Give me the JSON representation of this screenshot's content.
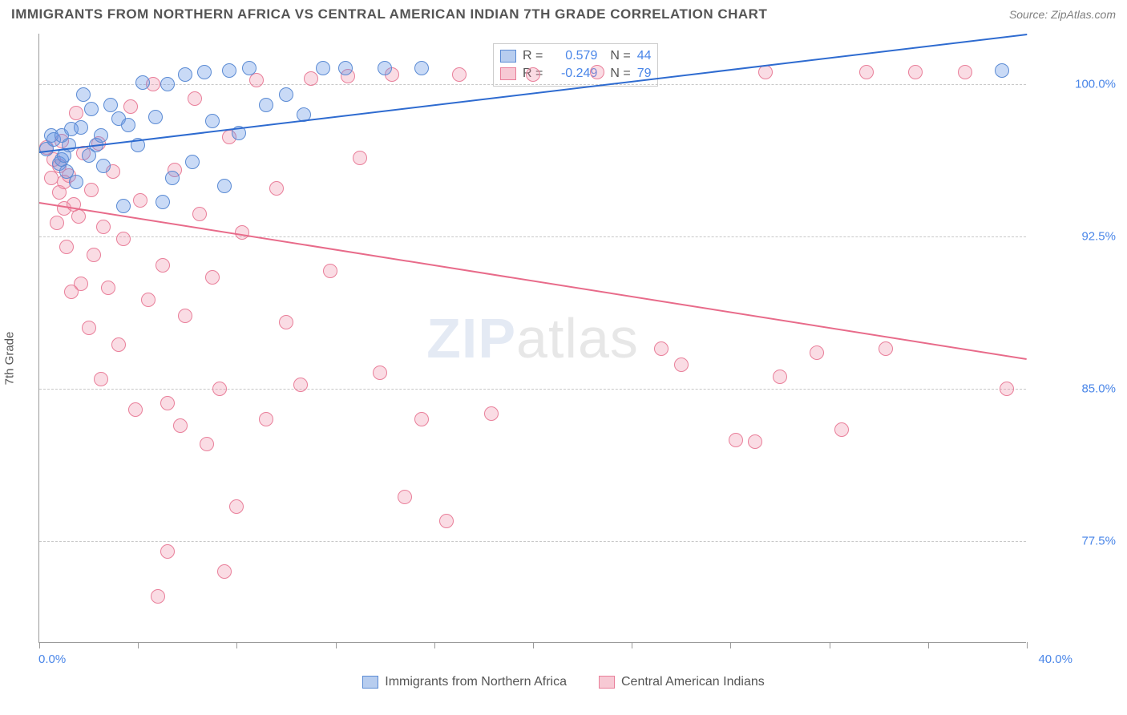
{
  "title": "IMMIGRANTS FROM NORTHERN AFRICA VS CENTRAL AMERICAN INDIAN 7TH GRADE CORRELATION CHART",
  "source": "Source: ZipAtlas.com",
  "ylabel": "7th Grade",
  "watermark_bold": "ZIP",
  "watermark_thin": "atlas",
  "chart": {
    "type": "scatter",
    "xlim": [
      0,
      40
    ],
    "ylim": [
      72.5,
      102.5
    ],
    "x_start_label": "0.0%",
    "x_end_label": "40.0%",
    "xtick_positions": [
      0,
      4,
      8,
      12,
      16,
      20,
      24,
      28,
      32,
      36,
      40
    ],
    "ytick_labels": [
      "100.0%",
      "92.5%",
      "85.0%",
      "77.5%"
    ],
    "ytick_values": [
      100.0,
      92.5,
      85.0,
      77.5
    ],
    "grid_color": "#c8c8c8",
    "axis_color": "#9a9a9a",
    "background_color": "#ffffff",
    "point_radius": 9,
    "point_opacity": 0.55,
    "line_width": 2
  },
  "series": [
    {
      "name": "Immigrants from Northern Africa",
      "color_fill": "rgba(100,150,230,0.35)",
      "color_stroke": "#5b8bd4",
      "swatch_fill": "#b7cdef",
      "swatch_border": "#5b8bd4",
      "trend_color": "#2e6bd0",
      "R": "0.579",
      "N": "44",
      "trend_line": {
        "x1": 0,
        "y1": 96.7,
        "x2": 40,
        "y2": 102.5
      },
      "points": [
        [
          0.3,
          96.8
        ],
        [
          0.5,
          97.5
        ],
        [
          0.6,
          97.3
        ],
        [
          0.8,
          96.1
        ],
        [
          0.9,
          96.3
        ],
        [
          0.9,
          97.5
        ],
        [
          1.0,
          96.5
        ],
        [
          1.1,
          95.7
        ],
        [
          1.2,
          97.0
        ],
        [
          1.3,
          97.8
        ],
        [
          1.5,
          95.2
        ],
        [
          1.7,
          97.9
        ],
        [
          1.8,
          99.5
        ],
        [
          2.0,
          96.5
        ],
        [
          2.1,
          98.8
        ],
        [
          2.3,
          97.0
        ],
        [
          2.5,
          97.5
        ],
        [
          2.6,
          96.0
        ],
        [
          2.9,
          99.0
        ],
        [
          3.2,
          98.3
        ],
        [
          3.4,
          94.0
        ],
        [
          3.6,
          98.0
        ],
        [
          4.0,
          97.0
        ],
        [
          4.2,
          100.1
        ],
        [
          4.7,
          98.4
        ],
        [
          5.0,
          94.2
        ],
        [
          5.2,
          100.0
        ],
        [
          5.4,
          95.4
        ],
        [
          5.9,
          100.5
        ],
        [
          6.2,
          96.2
        ],
        [
          6.7,
          100.6
        ],
        [
          7.0,
          98.2
        ],
        [
          7.5,
          95.0
        ],
        [
          7.7,
          100.7
        ],
        [
          8.1,
          97.6
        ],
        [
          8.5,
          100.8
        ],
        [
          9.2,
          99.0
        ],
        [
          10.0,
          99.5
        ],
        [
          10.7,
          98.5
        ],
        [
          11.5,
          100.8
        ],
        [
          12.4,
          100.8
        ],
        [
          14.0,
          100.8
        ],
        [
          15.5,
          100.8
        ],
        [
          39.0,
          100.7
        ]
      ]
    },
    {
      "name": "Central American Indians",
      "color_fill": "rgba(240,140,165,0.30)",
      "color_stroke": "#e97f9a",
      "swatch_fill": "#f7c9d4",
      "swatch_border": "#e97f9a",
      "trend_color": "#e86b8a",
      "R": "-0.249",
      "N": "79",
      "trend_line": {
        "x1": 0,
        "y1": 94.2,
        "x2": 40,
        "y2": 86.5
      },
      "points": [
        [
          0.3,
          96.9
        ],
        [
          0.5,
          95.4
        ],
        [
          0.6,
          96.3
        ],
        [
          0.7,
          93.2
        ],
        [
          0.8,
          96.0
        ],
        [
          0.8,
          94.7
        ],
        [
          0.9,
          97.2
        ],
        [
          1.0,
          93.9
        ],
        [
          1.0,
          95.2
        ],
        [
          1.1,
          92.0
        ],
        [
          1.2,
          95.5
        ],
        [
          1.3,
          89.8
        ],
        [
          1.4,
          94.1
        ],
        [
          1.5,
          98.6
        ],
        [
          1.6,
          93.5
        ],
        [
          1.7,
          90.2
        ],
        [
          1.8,
          96.6
        ],
        [
          2.0,
          88.0
        ],
        [
          2.1,
          94.8
        ],
        [
          2.2,
          91.6
        ],
        [
          2.4,
          97.1
        ],
        [
          2.5,
          85.5
        ],
        [
          2.6,
          93.0
        ],
        [
          2.8,
          90.0
        ],
        [
          3.0,
          95.7
        ],
        [
          3.2,
          87.2
        ],
        [
          3.4,
          92.4
        ],
        [
          3.7,
          98.9
        ],
        [
          3.9,
          84.0
        ],
        [
          4.1,
          94.3
        ],
        [
          4.4,
          89.4
        ],
        [
          4.6,
          100.0
        ],
        [
          4.8,
          74.8
        ],
        [
          5.0,
          91.1
        ],
        [
          5.2,
          84.3
        ],
        [
          5.2,
          77.0
        ],
        [
          5.5,
          95.8
        ],
        [
          5.7,
          83.2
        ],
        [
          5.9,
          88.6
        ],
        [
          6.3,
          99.3
        ],
        [
          6.5,
          93.6
        ],
        [
          6.8,
          82.3
        ],
        [
          7.0,
          90.5
        ],
        [
          7.3,
          85.0
        ],
        [
          7.5,
          76.0
        ],
        [
          7.7,
          97.4
        ],
        [
          8.0,
          79.2
        ],
        [
          8.2,
          92.7
        ],
        [
          8.8,
          100.2
        ],
        [
          9.2,
          83.5
        ],
        [
          9.6,
          94.9
        ],
        [
          10.0,
          88.3
        ],
        [
          10.6,
          85.2
        ],
        [
          11.0,
          100.3
        ],
        [
          11.8,
          90.8
        ],
        [
          12.5,
          100.4
        ],
        [
          13.0,
          96.4
        ],
        [
          13.8,
          85.8
        ],
        [
          14.3,
          100.5
        ],
        [
          14.8,
          79.7
        ],
        [
          15.5,
          83.5
        ],
        [
          16.5,
          78.5
        ],
        [
          17.0,
          100.5
        ],
        [
          18.3,
          83.8
        ],
        [
          20.0,
          100.5
        ],
        [
          22.6,
          100.6
        ],
        [
          25.2,
          87.0
        ],
        [
          26.0,
          86.2
        ],
        [
          28.2,
          82.5
        ],
        [
          29.0,
          82.4
        ],
        [
          29.4,
          100.6
        ],
        [
          30.0,
          85.6
        ],
        [
          31.5,
          86.8
        ],
        [
          32.5,
          83.0
        ],
        [
          33.5,
          100.6
        ],
        [
          34.3,
          87.0
        ],
        [
          35.5,
          100.6
        ],
        [
          37.5,
          100.6
        ],
        [
          39.2,
          85.0
        ]
      ]
    }
  ]
}
